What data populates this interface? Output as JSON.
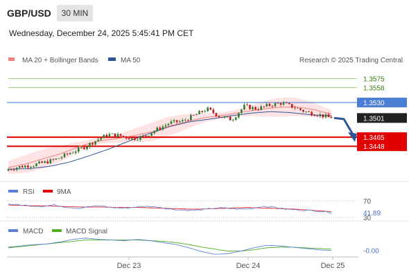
{
  "header": {
    "symbol": "GBP/USD",
    "timeframe": "30 MIN",
    "datetime": "Wednesday, December 24, 2025 5:45:41 PM CET"
  },
  "colors": {
    "candle_up": "#2e7d32",
    "candle_down": "#b71c1c",
    "ma20": "#f08080",
    "bollinger_fill": "#fde3e3",
    "ma50": "#2f5597",
    "resistance": "#8bc34a",
    "pivot": "#4a7fd4",
    "support": "#e00000",
    "current": "#222222",
    "forecast_arrow": "#2f5597",
    "rsi": "#5b7fd6",
    "rsi_ma": "#e00000",
    "macd": "#5b7fd6",
    "macd_signal": "#4caf20"
  },
  "chart_data": [
    {
      "type": "candlestick",
      "panel": "price",
      "legend": [
        {
          "name": "MA 20 + Bollinger Bands",
          "color": "#f08080"
        },
        {
          "name": "MA 50",
          "color": "#2f5597"
        }
      ],
      "watermark": "Research © 2025 Trading Central",
      "x_ticks": [
        "Dec 23",
        "Dec 24",
        "Dec 25"
      ],
      "ylim": [
        1.3395,
        1.3595
      ],
      "levels": [
        {
          "label": "1.3575",
          "value": 1.3575,
          "kind": "resistance"
        },
        {
          "label": "1.3558",
          "value": 1.3558,
          "kind": "resistance"
        },
        {
          "label": "1.3530",
          "value": 1.353,
          "kind": "pivot"
        },
        {
          "label": "1.3501",
          "value": 1.3501,
          "kind": "current"
        },
        {
          "label": "1.3465",
          "value": 1.3465,
          "kind": "support"
        },
        {
          "label": "1.3448",
          "value": 1.3448,
          "kind": "support"
        }
      ],
      "forecast": {
        "from": 1.3501,
        "to": 1.346
      },
      "bars": 116,
      "close_path": [
        1.3405,
        1.341,
        1.3413,
        1.3418,
        1.3425,
        1.3436,
        1.3445,
        1.3458,
        1.347,
        1.3468,
        1.3462,
        1.3467,
        1.348,
        1.3492,
        1.3495,
        1.3506,
        1.3518,
        1.3504,
        1.3498,
        1.3523,
        1.3518,
        1.3525,
        1.3529,
        1.3521,
        1.3512,
        1.3507,
        1.3501
      ],
      "ma20_path": [
        1.3408,
        1.3415,
        1.3425,
        1.3435,
        1.3448,
        1.3458,
        1.3462,
        1.3468,
        1.3475,
        1.3486,
        1.3495,
        1.3502,
        1.3506,
        1.3512,
        1.3517,
        1.3521,
        1.3522,
        1.3517,
        1.3508
      ],
      "ma50_path": [
        1.3405,
        1.3406,
        1.341,
        1.3418,
        1.343,
        1.3443,
        1.3458,
        1.3472,
        1.3485,
        1.3494,
        1.3499,
        1.3505,
        1.351,
        1.3513,
        1.3511,
        1.3507,
        1.3505
      ]
    },
    {
      "type": "line",
      "panel": "rsi",
      "legend": [
        {
          "name": "RSI",
          "color": "#5b7fd6"
        },
        {
          "name": "9MA",
          "color": "#e00000"
        }
      ],
      "ylim": [
        25,
        75
      ],
      "levels": [
        {
          "label": "70",
          "value": 70
        },
        {
          "label": "30",
          "value": 30
        }
      ],
      "current_label": "41.89",
      "current_value": 41.89,
      "rsi_path": [
        62,
        60,
        58,
        57,
        60,
        55,
        52,
        56,
        58,
        54,
        52,
        55,
        57,
        55,
        50,
        48,
        47,
        49,
        53,
        52,
        50,
        51,
        57,
        55,
        50,
        48,
        47,
        45,
        41.89
      ],
      "ma_path": [
        60,
        59,
        58,
        58,
        57,
        56,
        55,
        55,
        55,
        54,
        54,
        54,
        53,
        52,
        51,
        50,
        50,
        51,
        52,
        53,
        54,
        53,
        52,
        51,
        50,
        48,
        46,
        44
      ]
    },
    {
      "type": "line",
      "panel": "macd",
      "legend": [
        {
          "name": "MACD",
          "color": "#5b7fd6"
        },
        {
          "name": "MACD Signal",
          "color": "#4caf20"
        }
      ],
      "ylim": [
        -0.0012,
        0.0022
      ],
      "current_label": "-0.00",
      "current_value": -0.0001,
      "macd_path": [
        0.0004,
        0.0006,
        0.0008,
        0.0009,
        0.0012,
        0.0016,
        0.0018,
        0.0016,
        0.0015,
        0.0014,
        0.0016,
        0.0014,
        0.0011,
        0.0008,
        0.0003,
        -0.0003,
        -0.0007,
        -0.0006,
        -0.0002,
        0.0003,
        0.0007,
        0.0006,
        0.0004,
        0.0002,
        0.0,
        -0.0001
      ],
      "signal_path": [
        0.0003,
        0.0005,
        0.0007,
        0.0009,
        0.0011,
        0.0013,
        0.0015,
        0.0015,
        0.0015,
        0.0015,
        0.0015,
        0.0014,
        0.0013,
        0.0011,
        0.0008,
        0.0004,
        0.0001,
        -0.0002,
        -0.0002,
        0.0,
        0.0003,
        0.0004,
        0.0004,
        0.0003,
        0.0002,
        0.0001
      ]
    }
  ]
}
